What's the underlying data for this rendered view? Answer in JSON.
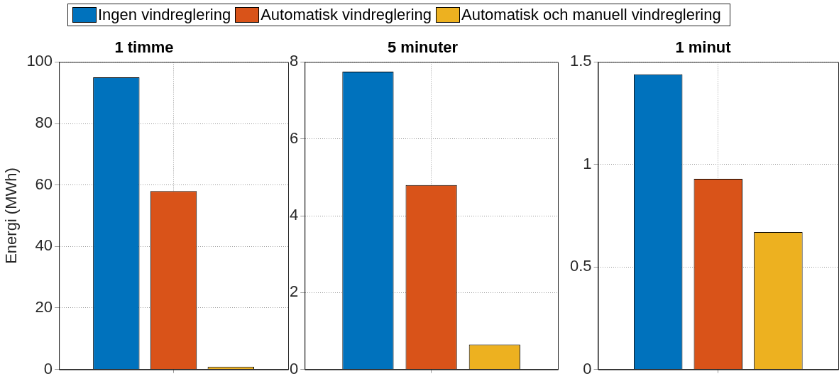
{
  "chart_data": [
    {
      "type": "bar",
      "title": "1 timme",
      "ylabel": "Energi (MWh)",
      "categories": [
        null
      ],
      "series": [
        {
          "name": "Ingen vindreglering",
          "color": "#0072bd",
          "values": [
            95
          ]
        },
        {
          "name": "Automatisk vindreglering",
          "color": "#d95319",
          "values": [
            58
          ]
        },
        {
          "name": "Automatisk och manuell vindreglering",
          "color": "#edb120",
          "values": [
            0.9
          ]
        }
      ],
      "ylim": [
        0,
        100
      ],
      "yticks": [
        0,
        20,
        40,
        60,
        80,
        100
      ],
      "grid": true,
      "legend": "top"
    },
    {
      "type": "bar",
      "title": "5 minuter",
      "categories": [
        null
      ],
      "series": [
        {
          "color": "#0072bd",
          "values": [
            7.75
          ]
        },
        {
          "color": "#d95319",
          "values": [
            4.8
          ]
        },
        {
          "color": "#edb120",
          "values": [
            0.65
          ]
        }
      ],
      "ylim": [
        0,
        8
      ],
      "yticks": [
        0,
        2,
        4,
        6,
        8
      ],
      "grid": true
    },
    {
      "type": "bar",
      "title": "1 minut",
      "categories": [
        null
      ],
      "series": [
        {
          "color": "#0072bd",
          "values": [
            1.44
          ]
        },
        {
          "color": "#d95319",
          "values": [
            0.93
          ]
        },
        {
          "color": "#edb120",
          "values": [
            0.67
          ]
        }
      ],
      "ylim": [
        0,
        1.5
      ],
      "yticks": [
        0,
        {
          "value": 0.5,
          "label": "0.5"
        },
        1,
        {
          "value": 1.5,
          "label": "1.5"
        }
      ],
      "grid": true
    }
  ]
}
